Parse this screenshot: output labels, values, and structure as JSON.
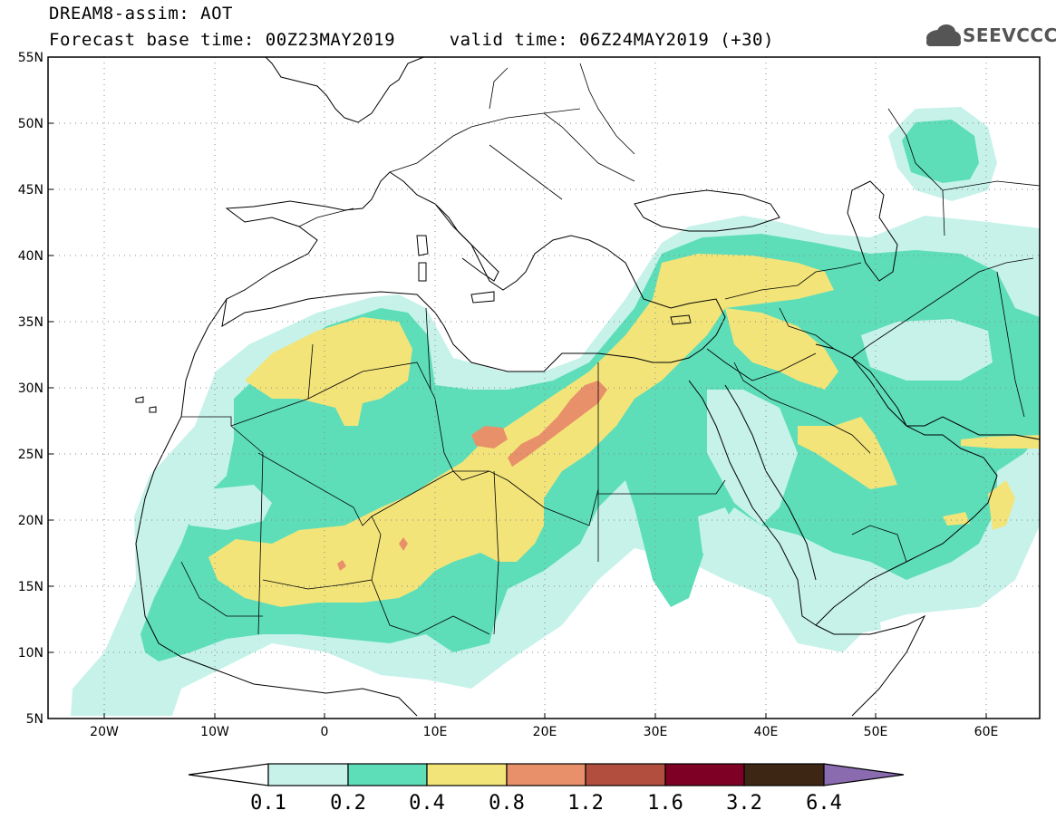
{
  "title": {
    "line1": "DREAM8-assim: AOT",
    "line2": "Forecast base time: 00Z23MAY2019     valid time: 06Z24MAY2019 (+30)"
  },
  "logo": {
    "text": "SEEVCCC",
    "icon": "cloud-icon"
  },
  "map": {
    "lon_range": [
      -25,
      65
    ],
    "lat_range": [
      5,
      55
    ],
    "lat_ticks": [
      "55N",
      "50N",
      "45N",
      "40N",
      "35N",
      "30N",
      "25N",
      "20N",
      "15N",
      "10N",
      "5N"
    ],
    "lon_ticks": [
      "20W",
      "10W",
      "0",
      "10E",
      "20E",
      "30E",
      "40E",
      "50E",
      "60E"
    ],
    "gridlines": "dotted"
  },
  "colorbar": {
    "labels": [
      "0.1",
      "0.2",
      "0.4",
      "0.8",
      "1.2",
      "1.6",
      "3.2",
      "6.4"
    ],
    "colors": [
      "#c6f2ea",
      "#5ddeb8",
      "#f3e47a",
      "#e8906a",
      "#b24e3e",
      "#7e0024",
      "#3e2614",
      "#8a6bb0"
    ]
  }
}
